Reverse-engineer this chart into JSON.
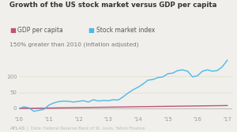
{
  "title": "Growth of the US stock market versus GDP per capita",
  "subtitle": "150% greater than 2010 (inflation adjusted)",
  "legend": [
    "GDP per capita",
    "Stock market index"
  ],
  "legend_colors": [
    "#c0517a",
    "#4db8e8"
  ],
  "background_color": "#f0efeb",
  "x_ticks": [
    "'10",
    "'11",
    "'12",
    "'13",
    "'14",
    "'15",
    "'16",
    "'17"
  ],
  "x_tick_vals": [
    0,
    12,
    24,
    36,
    48,
    60,
    72,
    84
  ],
  "footer_logo": "ATLAS",
  "footer_source": "Data: Federal Reserve Bank of St. Louis, Yahoo Finance",
  "ylim": [
    -20,
    165
  ],
  "xlim": [
    0,
    86
  ],
  "y_ticks": [
    0,
    50,
    100
  ],
  "gdp_x": [
    0,
    2,
    4,
    6,
    8,
    10,
    12,
    14,
    16,
    18,
    20,
    22,
    24,
    26,
    28,
    30,
    32,
    34,
    36,
    38,
    40,
    42,
    44,
    46,
    48,
    50,
    52,
    54,
    56,
    58,
    60,
    62,
    64,
    66,
    68,
    70,
    72,
    74,
    76,
    78,
    80,
    82,
    84
  ],
  "gdp_y": [
    0,
    0.2,
    0.4,
    0.6,
    0.8,
    1.0,
    1.3,
    1.5,
    1.8,
    2.0,
    2.2,
    2.5,
    2.7,
    2.9,
    3.1,
    3.3,
    3.5,
    3.7,
    3.9,
    4.1,
    4.3,
    4.5,
    4.8,
    5.0,
    5.3,
    5.5,
    5.7,
    5.9,
    6.1,
    6.3,
    6.5,
    6.7,
    6.9,
    7.1,
    7.3,
    7.5,
    7.7,
    7.9,
    8.1,
    8.3,
    8.5,
    8.7,
    9.0
  ],
  "stock_x": [
    0,
    2,
    4,
    6,
    8,
    10,
    12,
    14,
    16,
    18,
    20,
    22,
    24,
    26,
    28,
    30,
    32,
    34,
    36,
    38,
    40,
    42,
    44,
    46,
    48,
    50,
    52,
    54,
    56,
    58,
    60,
    62,
    64,
    66,
    68,
    70,
    72,
    74,
    76,
    78,
    80,
    82,
    84
  ],
  "stock_y": [
    0,
    5,
    2,
    -9,
    -6,
    -3,
    10,
    17,
    21,
    23,
    22,
    20,
    22,
    24,
    20,
    27,
    23,
    25,
    24,
    27,
    26,
    36,
    48,
    58,
    66,
    76,
    88,
    90,
    96,
    98,
    108,
    110,
    118,
    120,
    116,
    98,
    102,
    116,
    120,
    116,
    118,
    130,
    150
  ]
}
